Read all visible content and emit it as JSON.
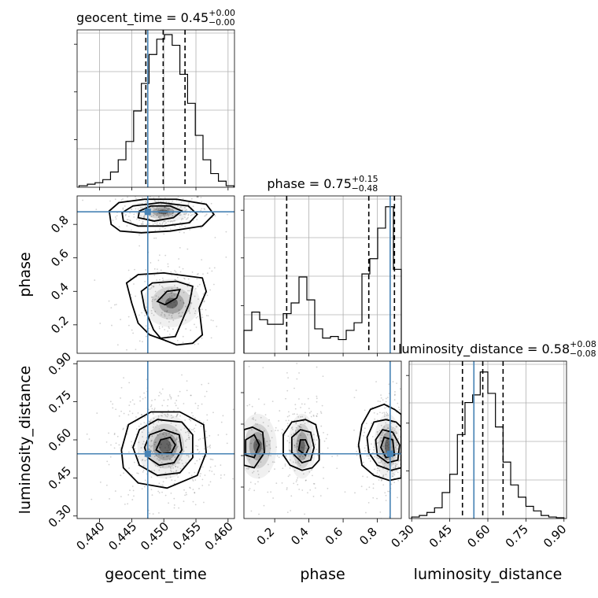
{
  "colors": {
    "truth": "#4682b4",
    "line": "#000000",
    "grid": "#b0b0b0"
  },
  "chart_data": {
    "type": "corner",
    "parameters": [
      "geocent_time",
      "phase",
      "luminosity_distance"
    ],
    "truths": {
      "geocent_time": 0.4475,
      "phase": 0.875,
      "luminosity_distance": 0.545
    },
    "diagonal": [
      {
        "param": "geocent_time",
        "title_prefix": "geocent_time = 0.45",
        "title_sup": "+0.00",
        "title_sub": "−0.00",
        "xlim": [
          0.4365,
          0.461
        ],
        "ymax": 1,
        "quantiles": [
          0.4472,
          0.4499,
          0.4533
        ],
        "hist_edges": [
          0.4368,
          0.4381,
          0.4393,
          0.4405,
          0.4417,
          0.4429,
          0.4441,
          0.4453,
          0.4465,
          0.4477,
          0.4489,
          0.4501,
          0.4513,
          0.4525,
          0.4537,
          0.4549,
          0.4561,
          0.4573,
          0.4585,
          0.4597,
          0.4609
        ],
        "hist_counts": [
          0.01,
          0.02,
          0.03,
          0.05,
          0.1,
          0.18,
          0.3,
          0.5,
          0.68,
          0.87,
          0.97,
          1.0,
          0.93,
          0.74,
          0.55,
          0.34,
          0.18,
          0.09,
          0.04,
          0.01
        ]
      },
      {
        "param": "phase",
        "title_prefix": "phase = 0.75",
        "title_sup": "+0.15",
        "title_sub": "−0.48",
        "xlim": [
          0.02,
          0.94
        ],
        "ymax": 1,
        "quantiles": [
          0.27,
          0.75,
          0.9
        ],
        "hist_edges": [
          0.02,
          0.066,
          0.112,
          0.158,
          0.204,
          0.25,
          0.296,
          0.342,
          0.388,
          0.434,
          0.48,
          0.526,
          0.572,
          0.618,
          0.664,
          0.71,
          0.756,
          0.802,
          0.848,
          0.894,
          0.94
        ],
        "hist_counts": [
          0.15,
          0.27,
          0.22,
          0.19,
          0.19,
          0.26,
          0.33,
          0.5,
          0.35,
          0.16,
          0.1,
          0.11,
          0.09,
          0.15,
          0.2,
          0.52,
          0.62,
          0.82,
          0.96,
          0.55
        ]
      },
      {
        "param": "luminosity_distance",
        "title_prefix": "luminosity_distance = 0.58",
        "title_sup": "+0.08",
        "title_sub": "−0.08",
        "xlim": [
          0.29,
          0.91
        ],
        "ymax": 1,
        "quantiles": [
          0.5,
          0.58,
          0.66
        ],
        "hist_edges": [
          0.3,
          0.33,
          0.36,
          0.39,
          0.42,
          0.45,
          0.48,
          0.51,
          0.54,
          0.57,
          0.6,
          0.63,
          0.66,
          0.69,
          0.72,
          0.75,
          0.78,
          0.81,
          0.84,
          0.87,
          0.9
        ],
        "hist_counts": [
          0.01,
          0.02,
          0.04,
          0.07,
          0.17,
          0.29,
          0.55,
          0.76,
          0.81,
          0.96,
          0.82,
          0.6,
          0.37,
          0.22,
          0.14,
          0.08,
          0.05,
          0.02,
          0.01,
          0.005
        ]
      }
    ],
    "panels": [
      {
        "x": "geocent_time",
        "y": "phase",
        "xlim": [
          0.4365,
          0.461
        ],
        "ylim": [
          0.03,
          0.97
        ],
        "ytick_values": [
          0.2,
          0.4,
          0.6,
          0.8
        ],
        "ytick_labels": [
          "0.2",
          "0.4",
          "0.6",
          "0.8"
        ],
        "blobs": [
          {
            "cx": 0.4499,
            "cy": 0.875,
            "sx": 0.0024,
            "sy": 0.04,
            "n": 320
          },
          {
            "cx": 0.4512,
            "cy": 0.33,
            "sx": 0.0028,
            "sy": 0.09,
            "n": 260
          }
        ],
        "contours": [
          [
            [
              0.4418,
              0.8
            ],
            [
              0.4432,
              0.76
            ],
            [
              0.4465,
              0.75
            ],
            [
              0.451,
              0.76
            ],
            [
              0.456,
              0.79
            ],
            [
              0.4578,
              0.86
            ],
            [
              0.4566,
              0.92
            ],
            [
              0.452,
              0.95
            ],
            [
              0.447,
              0.95
            ],
            [
              0.443,
              0.93
            ],
            [
              0.4415,
              0.88
            ]
          ],
          [
            [
              0.4437,
              0.82
            ],
            [
              0.446,
              0.79
            ],
            [
              0.45,
              0.79
            ],
            [
              0.454,
              0.81
            ],
            [
              0.4552,
              0.86
            ],
            [
              0.4538,
              0.91
            ],
            [
              0.4495,
              0.93
            ],
            [
              0.4452,
              0.91
            ],
            [
              0.4435,
              0.87
            ]
          ],
          [
            [
              0.446,
              0.84
            ],
            [
              0.4485,
              0.82
            ],
            [
              0.4515,
              0.84
            ],
            [
              0.4528,
              0.88
            ],
            [
              0.451,
              0.91
            ],
            [
              0.448,
              0.91
            ],
            [
              0.4462,
              0.88
            ]
          ],
          [
            [
              0.4442,
              0.45
            ],
            [
              0.446,
              0.5
            ],
            [
              0.45,
              0.51
            ],
            [
              0.456,
              0.48
            ],
            [
              0.4566,
              0.4
            ],
            [
              0.4555,
              0.3
            ],
            [
              0.456,
              0.14
            ],
            [
              0.4545,
              0.09
            ],
            [
              0.452,
              0.08
            ],
            [
              0.45,
              0.11
            ],
            [
              0.4478,
              0.14
            ],
            [
              0.446,
              0.21
            ],
            [
              0.445,
              0.33
            ]
          ],
          [
            [
              0.4465,
              0.4
            ],
            [
              0.4482,
              0.45
            ],
            [
              0.452,
              0.46
            ],
            [
              0.4545,
              0.43
            ],
            [
              0.454,
              0.33
            ],
            [
              0.4528,
              0.22
            ],
            [
              0.4518,
              0.13
            ],
            [
              0.4495,
              0.12
            ],
            [
              0.4484,
              0.17
            ],
            [
              0.447,
              0.3
            ]
          ],
          [
            [
              0.449,
              0.34
            ],
            [
              0.4505,
              0.4
            ],
            [
              0.4525,
              0.41
            ],
            [
              0.452,
              0.36
            ],
            [
              0.4502,
              0.32
            ]
          ]
        ]
      },
      {
        "x": "geocent_time",
        "y": "luminosity_distance",
        "xlim": [
          0.4365,
          0.461
        ],
        "ylim": [
          0.29,
          0.91
        ],
        "ytick_values": [
          0.3,
          0.45,
          0.6,
          0.75,
          0.9
        ],
        "ytick_labels": [
          "0.30",
          "0.45",
          "0.60",
          "0.75",
          "0.90"
        ],
        "xtick_values": [
          0.44,
          0.445,
          0.45,
          0.455,
          0.46
        ],
        "xtick_labels": [
          "0.440",
          "0.445",
          "0.450",
          "0.455",
          "0.460"
        ],
        "blobs": [
          {
            "cx": 0.4502,
            "cy": 0.575,
            "sx": 0.0027,
            "sy": 0.08,
            "n": 520
          }
        ],
        "contours": [
          [
            [
              0.4434,
              0.56
            ],
            [
              0.4445,
              0.66
            ],
            [
              0.448,
              0.71
            ],
            [
              0.4525,
              0.71
            ],
            [
              0.4562,
              0.66
            ],
            [
              0.4566,
              0.55
            ],
            [
              0.4552,
              0.46
            ],
            [
              0.4505,
              0.41
            ],
            [
              0.446,
              0.43
            ],
            [
              0.4437,
              0.49
            ]
          ],
          [
            [
              0.4452,
              0.57
            ],
            [
              0.4462,
              0.64
            ],
            [
              0.449,
              0.68
            ],
            [
              0.4528,
              0.67
            ],
            [
              0.4545,
              0.62
            ],
            [
              0.4545,
              0.53
            ],
            [
              0.4525,
              0.47
            ],
            [
              0.449,
              0.46
            ],
            [
              0.4462,
              0.5
            ]
          ],
          [
            [
              0.447,
              0.57
            ],
            [
              0.4478,
              0.62
            ],
            [
              0.45,
              0.64
            ],
            [
              0.4524,
              0.62
            ],
            [
              0.4528,
              0.56
            ],
            [
              0.4516,
              0.51
            ],
            [
              0.4493,
              0.5
            ],
            [
              0.4475,
              0.53
            ]
          ],
          [
            [
              0.4488,
              0.56
            ],
            [
              0.4495,
              0.6
            ],
            [
              0.451,
              0.61
            ],
            [
              0.4518,
              0.58
            ],
            [
              0.4512,
              0.55
            ],
            [
              0.4497,
              0.545
            ]
          ]
        ]
      },
      {
        "x": "phase",
        "y": "luminosity_distance",
        "xlim": [
          0.02,
          0.94
        ],
        "ylim": [
          0.29,
          0.91
        ],
        "xtick_values": [
          0.2,
          0.4,
          0.6,
          0.8
        ],
        "xtick_labels": [
          "0.2",
          "0.4",
          "0.6",
          "0.8"
        ],
        "blobs": [
          {
            "cx": 0.36,
            "cy": 0.575,
            "sx": 0.05,
            "sy": 0.08,
            "n": 200
          },
          {
            "cx": 0.1,
            "cy": 0.575,
            "sx": 0.07,
            "sy": 0.08,
            "n": 130
          },
          {
            "cx": 0.86,
            "cy": 0.575,
            "sx": 0.05,
            "sy": 0.08,
            "n": 330
          }
        ],
        "contours": [
          [
            [
              0.02,
              0.5
            ],
            [
              0.08,
              0.49
            ],
            [
              0.14,
              0.55
            ],
            [
              0.13,
              0.63
            ],
            [
              0.07,
              0.65
            ],
            [
              0.02,
              0.64
            ]
          ],
          [
            [
              0.03,
              0.54
            ],
            [
              0.08,
              0.53
            ],
            [
              0.11,
              0.58
            ],
            [
              0.08,
              0.62
            ],
            [
              0.03,
              0.6
            ]
          ],
          [
            [
              0.25,
              0.54
            ],
            [
              0.29,
              0.5
            ],
            [
              0.36,
              0.48
            ],
            [
              0.42,
              0.49
            ],
            [
              0.46,
              0.52
            ],
            [
              0.46,
              0.6
            ],
            [
              0.44,
              0.66
            ],
            [
              0.38,
              0.68
            ],
            [
              0.3,
              0.67
            ],
            [
              0.25,
              0.62
            ]
          ],
          [
            [
              0.3,
              0.55
            ],
            [
              0.36,
              0.51
            ],
            [
              0.41,
              0.52
            ],
            [
              0.43,
              0.57
            ],
            [
              0.41,
              0.63
            ],
            [
              0.35,
              0.64
            ],
            [
              0.3,
              0.61
            ]
          ],
          [
            [
              0.34,
              0.56
            ],
            [
              0.38,
              0.54
            ],
            [
              0.4,
              0.57
            ],
            [
              0.38,
              0.6
            ],
            [
              0.35,
              0.6
            ]
          ],
          [
            [
              0.94,
              0.45
            ],
            [
              0.87,
              0.44
            ],
            [
              0.78,
              0.46
            ],
            [
              0.71,
              0.5
            ],
            [
              0.69,
              0.58
            ],
            [
              0.71,
              0.66
            ],
            [
              0.76,
              0.72
            ],
            [
              0.84,
              0.74
            ],
            [
              0.9,
              0.72
            ],
            [
              0.94,
              0.7
            ]
          ],
          [
            [
              0.94,
              0.49
            ],
            [
              0.88,
              0.48
            ],
            [
              0.8,
              0.5
            ],
            [
              0.75,
              0.55
            ],
            [
              0.74,
              0.61
            ],
            [
              0.78,
              0.67
            ],
            [
              0.85,
              0.68
            ],
            [
              0.91,
              0.67
            ],
            [
              0.94,
              0.65
            ]
          ],
          [
            [
              0.92,
              0.52
            ],
            [
              0.86,
              0.51
            ],
            [
              0.8,
              0.54
            ],
            [
              0.79,
              0.6
            ],
            [
              0.83,
              0.64
            ],
            [
              0.89,
              0.63
            ],
            [
              0.93,
              0.58
            ]
          ],
          [
            [
              0.9,
              0.54
            ],
            [
              0.85,
              0.53
            ],
            [
              0.82,
              0.57
            ],
            [
              0.84,
              0.61
            ],
            [
              0.89,
              0.6
            ]
          ]
        ]
      }
    ]
  }
}
